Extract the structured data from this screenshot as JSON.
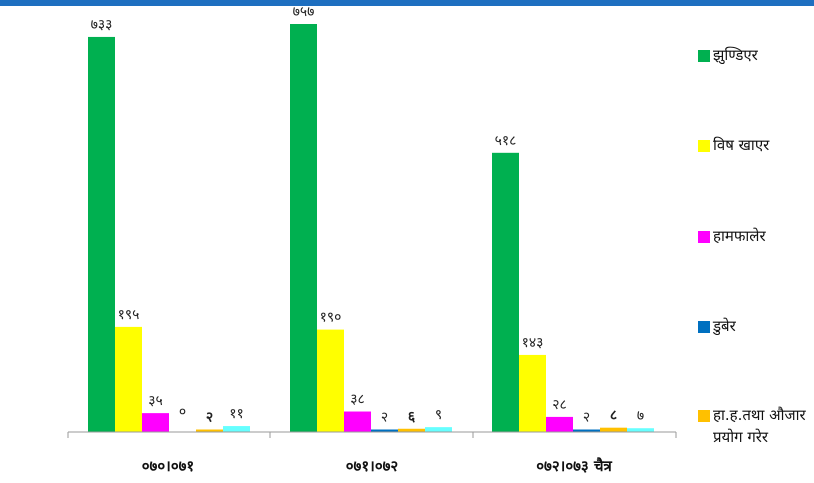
{
  "chart_data": {
    "type": "bar",
    "categories": [
      "०७०।०७१",
      "०७१।०७२",
      "०७२।०७३ चैत्र"
    ],
    "series": [
      {
        "name": "झुण्डिएर",
        "color": "#00b050",
        "values": [
          733,
          757,
          518
        ],
        "labels": [
          "७३३",
          "७५७",
          "५१८"
        ]
      },
      {
        "name": "विष खाएर",
        "color": "#ffff00",
        "values": [
          195,
          190,
          143
        ],
        "labels": [
          "१९५",
          "१९०",
          "१४३"
        ]
      },
      {
        "name": "हामफालेर",
        "color": "#ff00ff",
        "values": [
          35,
          38,
          28
        ],
        "labels": [
          "३५",
          "३८",
          "२८"
        ]
      },
      {
        "name": "डुबेर",
        "color": "#0070c0",
        "values": [
          0,
          2,
          2
        ],
        "labels": [
          "०",
          "२",
          "२"
        ]
      },
      {
        "name": "हा.ह.तथा औजार प्रयोग गरेर",
        "color": "#ffc000",
        "values": [
          2,
          6,
          8
        ],
        "labels": [
          "२",
          "६",
          "८"
        ]
      },
      {
        "name": "",
        "color": "#66ffff",
        "values": [
          11,
          9,
          7
        ],
        "labels": [
          "११",
          "९",
          "७"
        ]
      }
    ],
    "ylim": [
      0,
      757
    ],
    "grid": false,
    "legend": "right"
  }
}
